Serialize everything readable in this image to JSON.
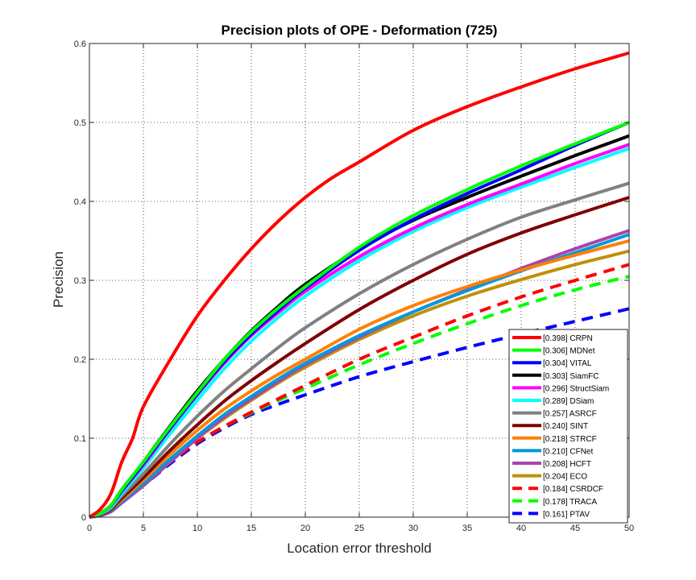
{
  "chart_data": {
    "type": "line",
    "title": "Precision plots of OPE - Deformation (725)",
    "xlabel": "Location error threshold",
    "ylabel": "Precision",
    "xlim": [
      0,
      50
    ],
    "ylim": [
      0,
      0.6
    ],
    "x_ticks": [
      "0",
      "5",
      "10",
      "15",
      "20",
      "25",
      "30",
      "35",
      "40",
      "45",
      "50"
    ],
    "y_ticks": [
      "0",
      "0.1",
      "0.2",
      "0.3",
      "0.4",
      "0.5",
      "0.6"
    ],
    "grid": true,
    "legend_position": "bottom-right",
    "series": [
      {
        "name": "CRPN",
        "score": "[0.398]",
        "label": "[0.398] CRPN",
        "color": "#ff0000",
        "dashed": false,
        "points": [
          [
            0,
            0
          ],
          [
            1,
            0.01
          ],
          [
            2,
            0.03
          ],
          [
            3,
            0.07
          ],
          [
            4,
            0.1
          ],
          [
            5,
            0.14
          ],
          [
            7.5,
            0.2
          ],
          [
            10,
            0.255
          ],
          [
            12.5,
            0.3
          ],
          [
            15,
            0.34
          ],
          [
            17.5,
            0.375
          ],
          [
            20,
            0.405
          ],
          [
            22.5,
            0.43
          ],
          [
            25,
            0.45
          ],
          [
            30,
            0.49
          ],
          [
            35,
            0.52
          ],
          [
            40,
            0.545
          ],
          [
            45,
            0.568
          ],
          [
            50,
            0.588
          ]
        ]
      },
      {
        "name": "MDNet",
        "score": "[0.306]",
        "label": "[0.306] MDNet",
        "color": "#00ff00",
        "dashed": false,
        "points": [
          [
            0,
            0
          ],
          [
            1,
            0.005
          ],
          [
            2,
            0.015
          ],
          [
            3,
            0.035
          ],
          [
            5,
            0.07
          ],
          [
            7.5,
            0.115
          ],
          [
            10,
            0.158
          ],
          [
            12.5,
            0.2
          ],
          [
            15,
            0.235
          ],
          [
            17.5,
            0.265
          ],
          [
            20,
            0.292
          ],
          [
            25,
            0.342
          ],
          [
            30,
            0.382
          ],
          [
            35,
            0.415
          ],
          [
            40,
            0.445
          ],
          [
            45,
            0.473
          ],
          [
            50,
            0.5
          ]
        ]
      },
      {
        "name": "VITAL",
        "score": "[0.304]",
        "label": "[0.304] VITAL",
        "color": "#0000ff",
        "dashed": false,
        "points": [
          [
            0,
            0
          ],
          [
            1,
            0.005
          ],
          [
            2,
            0.015
          ],
          [
            3,
            0.033
          ],
          [
            5,
            0.068
          ],
          [
            7.5,
            0.113
          ],
          [
            10,
            0.156
          ],
          [
            12.5,
            0.197
          ],
          [
            15,
            0.232
          ],
          [
            17.5,
            0.262
          ],
          [
            20,
            0.29
          ],
          [
            25,
            0.338
          ],
          [
            30,
            0.377
          ],
          [
            35,
            0.41
          ],
          [
            40,
            0.44
          ],
          [
            45,
            0.471
          ],
          [
            50,
            0.5
          ]
        ]
      },
      {
        "name": "SiamFC",
        "score": "[0.303]",
        "label": "[0.303] SiamFC",
        "color": "#000000",
        "dashed": false,
        "points": [
          [
            0,
            0
          ],
          [
            1,
            0.005
          ],
          [
            2,
            0.015
          ],
          [
            3,
            0.035
          ],
          [
            5,
            0.07
          ],
          [
            7.5,
            0.116
          ],
          [
            10,
            0.16
          ],
          [
            12.5,
            0.2
          ],
          [
            15,
            0.236
          ],
          [
            17.5,
            0.267
          ],
          [
            20,
            0.295
          ],
          [
            25,
            0.34
          ],
          [
            30,
            0.376
          ],
          [
            35,
            0.405
          ],
          [
            40,
            0.432
          ],
          [
            45,
            0.458
          ],
          [
            50,
            0.483
          ]
        ]
      },
      {
        "name": "StructSiam",
        "score": "[0.296]",
        "label": "[0.296] StructSiam",
        "color": "#ff00ff",
        "dashed": false,
        "points": [
          [
            0,
            0
          ],
          [
            1,
            0.005
          ],
          [
            2,
            0.014
          ],
          [
            3,
            0.033
          ],
          [
            5,
            0.066
          ],
          [
            7.5,
            0.112
          ],
          [
            10,
            0.155
          ],
          [
            12.5,
            0.195
          ],
          [
            15,
            0.23
          ],
          [
            17.5,
            0.259
          ],
          [
            20,
            0.286
          ],
          [
            25,
            0.33
          ],
          [
            30,
            0.366
          ],
          [
            35,
            0.396
          ],
          [
            40,
            0.422
          ],
          [
            45,
            0.448
          ],
          [
            50,
            0.472
          ]
        ]
      },
      {
        "name": "DSiam",
        "score": "[0.289]",
        "label": "[0.289] DSiam",
        "color": "#00ffff",
        "dashed": false,
        "points": [
          [
            0,
            0
          ],
          [
            1,
            0.004
          ],
          [
            2,
            0.012
          ],
          [
            3,
            0.03
          ],
          [
            5,
            0.062
          ],
          [
            7.5,
            0.106
          ],
          [
            10,
            0.148
          ],
          [
            12.5,
            0.188
          ],
          [
            15,
            0.223
          ],
          [
            17.5,
            0.253
          ],
          [
            20,
            0.28
          ],
          [
            25,
            0.325
          ],
          [
            30,
            0.362
          ],
          [
            35,
            0.392
          ],
          [
            40,
            0.418
          ],
          [
            45,
            0.443
          ],
          [
            50,
            0.467
          ]
        ]
      },
      {
        "name": "ASRCF",
        "score": "[0.257]",
        "label": "[0.257] ASRCF",
        "color": "#808080",
        "dashed": false,
        "points": [
          [
            0,
            0
          ],
          [
            1,
            0.004
          ],
          [
            2,
            0.012
          ],
          [
            3,
            0.027
          ],
          [
            5,
            0.055
          ],
          [
            7.5,
            0.093
          ],
          [
            10,
            0.128
          ],
          [
            12.5,
            0.16
          ],
          [
            15,
            0.188
          ],
          [
            17.5,
            0.215
          ],
          [
            20,
            0.24
          ],
          [
            25,
            0.283
          ],
          [
            30,
            0.32
          ],
          [
            35,
            0.352
          ],
          [
            40,
            0.38
          ],
          [
            45,
            0.402
          ],
          [
            50,
            0.423
          ]
        ]
      },
      {
        "name": "SINT",
        "score": "[0.240]",
        "label": "[0.240] SINT",
        "color": "#800000",
        "dashed": false,
        "points": [
          [
            0,
            0
          ],
          [
            1,
            0.003
          ],
          [
            2,
            0.01
          ],
          [
            3,
            0.024
          ],
          [
            5,
            0.05
          ],
          [
            7.5,
            0.085
          ],
          [
            10,
            0.117
          ],
          [
            12.5,
            0.147
          ],
          [
            15,
            0.173
          ],
          [
            17.5,
            0.197
          ],
          [
            20,
            0.22
          ],
          [
            25,
            0.263
          ],
          [
            30,
            0.3
          ],
          [
            35,
            0.333
          ],
          [
            40,
            0.36
          ],
          [
            45,
            0.383
          ],
          [
            50,
            0.405
          ]
        ]
      },
      {
        "name": "STRCF",
        "score": "[0.218]",
        "label": "[0.218] STRCF",
        "color": "#ff8000",
        "dashed": false,
        "points": [
          [
            0,
            0
          ],
          [
            1,
            0.003
          ],
          [
            2,
            0.01
          ],
          [
            3,
            0.022
          ],
          [
            5,
            0.047
          ],
          [
            7.5,
            0.08
          ],
          [
            10,
            0.11
          ],
          [
            12.5,
            0.137
          ],
          [
            15,
            0.16
          ],
          [
            17.5,
            0.181
          ],
          [
            20,
            0.2
          ],
          [
            25,
            0.238
          ],
          [
            30,
            0.268
          ],
          [
            35,
            0.292
          ],
          [
            40,
            0.313
          ],
          [
            45,
            0.332
          ],
          [
            50,
            0.35
          ]
        ]
      },
      {
        "name": "CFNet",
        "score": "[0.210]",
        "label": "[0.210] CFNet",
        "color": "#0099dd",
        "dashed": false,
        "points": [
          [
            0,
            0
          ],
          [
            1,
            0.003
          ],
          [
            2,
            0.009
          ],
          [
            3,
            0.02
          ],
          [
            5,
            0.043
          ],
          [
            7.5,
            0.074
          ],
          [
            10,
            0.103
          ],
          [
            12.5,
            0.13
          ],
          [
            15,
            0.153
          ],
          [
            17.5,
            0.175
          ],
          [
            20,
            0.195
          ],
          [
            25,
            0.23
          ],
          [
            30,
            0.26
          ],
          [
            35,
            0.287
          ],
          [
            40,
            0.312
          ],
          [
            45,
            0.335
          ],
          [
            50,
            0.358
          ]
        ]
      },
      {
        "name": "HCFT",
        "score": "[0.208]",
        "label": "[0.208] HCFT",
        "color": "#aa44aa",
        "dashed": false,
        "points": [
          [
            0,
            0
          ],
          [
            1,
            0.002
          ],
          [
            2,
            0.007
          ],
          [
            3,
            0.018
          ],
          [
            5,
            0.04
          ],
          [
            7.5,
            0.07
          ],
          [
            10,
            0.1
          ],
          [
            12.5,
            0.127
          ],
          [
            15,
            0.15
          ],
          [
            17.5,
            0.172
          ],
          [
            20,
            0.193
          ],
          [
            25,
            0.228
          ],
          [
            30,
            0.26
          ],
          [
            35,
            0.288
          ],
          [
            40,
            0.315
          ],
          [
            45,
            0.34
          ],
          [
            50,
            0.363
          ]
        ]
      },
      {
        "name": "ECO",
        "score": "[0.204]",
        "label": "[0.204] ECO",
        "color": "#c0900a",
        "dashed": false,
        "points": [
          [
            0,
            0
          ],
          [
            1,
            0.003
          ],
          [
            2,
            0.009
          ],
          [
            3,
            0.02
          ],
          [
            5,
            0.043
          ],
          [
            7.5,
            0.073
          ],
          [
            10,
            0.1
          ],
          [
            12.5,
            0.125
          ],
          [
            15,
            0.148
          ],
          [
            17.5,
            0.17
          ],
          [
            20,
            0.19
          ],
          [
            25,
            0.225
          ],
          [
            30,
            0.255
          ],
          [
            35,
            0.28
          ],
          [
            40,
            0.301
          ],
          [
            45,
            0.32
          ],
          [
            50,
            0.337
          ]
        ]
      },
      {
        "name": "CSRDCF",
        "score": "[0.184]",
        "label": "[0.184] CSRDCF",
        "color": "#ff0000",
        "dashed": true,
        "points": [
          [
            0,
            0
          ],
          [
            1,
            0.003
          ],
          [
            2,
            0.009
          ],
          [
            3,
            0.02
          ],
          [
            5,
            0.042
          ],
          [
            7.5,
            0.07
          ],
          [
            10,
            0.095
          ],
          [
            12.5,
            0.115
          ],
          [
            15,
            0.133
          ],
          [
            17.5,
            0.15
          ],
          [
            20,
            0.167
          ],
          [
            25,
            0.2
          ],
          [
            30,
            0.228
          ],
          [
            35,
            0.255
          ],
          [
            40,
            0.279
          ],
          [
            45,
            0.3
          ],
          [
            50,
            0.32
          ]
        ]
      },
      {
        "name": "TRACA",
        "score": "[0.178]",
        "label": "[0.178] TRACA",
        "color": "#00ff00",
        "dashed": true,
        "points": [
          [
            0,
            0
          ],
          [
            1,
            0.003
          ],
          [
            2,
            0.009
          ],
          [
            3,
            0.02
          ],
          [
            5,
            0.042
          ],
          [
            7.5,
            0.07
          ],
          [
            10,
            0.095
          ],
          [
            12.5,
            0.115
          ],
          [
            15,
            0.132
          ],
          [
            17.5,
            0.148
          ],
          [
            20,
            0.163
          ],
          [
            25,
            0.193
          ],
          [
            30,
            0.22
          ],
          [
            35,
            0.245
          ],
          [
            40,
            0.268
          ],
          [
            45,
            0.288
          ],
          [
            50,
            0.305
          ]
        ]
      },
      {
        "name": "PTAV",
        "score": "[0.161]",
        "label": "[0.161] PTAV",
        "color": "#0000ff",
        "dashed": true,
        "points": [
          [
            0,
            0
          ],
          [
            1,
            0.003
          ],
          [
            2,
            0.009
          ],
          [
            3,
            0.019
          ],
          [
            5,
            0.04
          ],
          [
            7.5,
            0.068
          ],
          [
            10,
            0.093
          ],
          [
            12.5,
            0.113
          ],
          [
            15,
            0.13
          ],
          [
            17.5,
            0.143
          ],
          [
            20,
            0.155
          ],
          [
            25,
            0.178
          ],
          [
            30,
            0.197
          ],
          [
            35,
            0.215
          ],
          [
            40,
            0.232
          ],
          [
            45,
            0.248
          ],
          [
            50,
            0.264
          ]
        ]
      }
    ]
  }
}
